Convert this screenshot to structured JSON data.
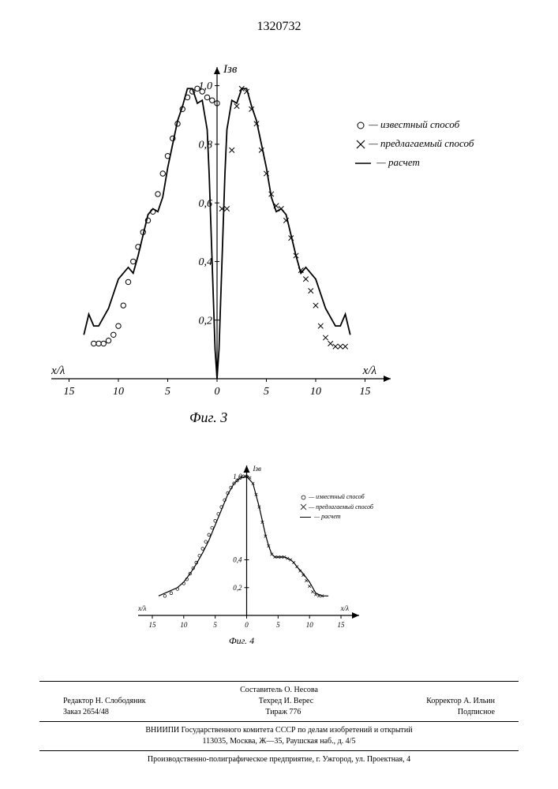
{
  "page_number": "1320732",
  "fig3": {
    "type": "line+scatter",
    "caption": "Фиг. 3",
    "y_label": "Iзв",
    "x_label_left": "x/λ",
    "x_label_right": "x/λ",
    "x_ticks_left": [
      "15",
      "10",
      "5",
      "0"
    ],
    "x_ticks_right": [
      "5",
      "10",
      "15"
    ],
    "y_ticks": [
      "0,2",
      "0,4",
      "0,6",
      "0,8",
      "1,0"
    ],
    "ylim": [
      0,
      1.05
    ],
    "xlim": [
      -16,
      16
    ],
    "line_color": "#000000",
    "line_width": 1.5,
    "marker_o_color": "#000000",
    "marker_x_color": "#000000",
    "background_color": "#ffffff",
    "calc_line": [
      [
        -13.5,
        0.15
      ],
      [
        -13,
        0.22
      ],
      [
        -12.5,
        0.18
      ],
      [
        -12,
        0.18
      ],
      [
        -11,
        0.24
      ],
      [
        -10,
        0.34
      ],
      [
        -9,
        0.38
      ],
      [
        -8.5,
        0.36
      ],
      [
        -8,
        0.42
      ],
      [
        -7,
        0.56
      ],
      [
        -6.5,
        0.58
      ],
      [
        -6,
        0.57
      ],
      [
        -5.5,
        0.62
      ],
      [
        -5,
        0.72
      ],
      [
        -4,
        0.88
      ],
      [
        -3.5,
        0.93
      ],
      [
        -3,
        0.99
      ],
      [
        -2.5,
        0.99
      ],
      [
        -2,
        0.94
      ],
      [
        -1.5,
        0.95
      ],
      [
        -1,
        0.85
      ],
      [
        -0.8,
        0.7
      ],
      [
        -0.5,
        0.4
      ],
      [
        -0.2,
        0.1
      ],
      [
        0,
        0.0
      ],
      [
        0.2,
        0.1
      ],
      [
        0.5,
        0.4
      ],
      [
        0.8,
        0.7
      ],
      [
        1,
        0.85
      ],
      [
        1.5,
        0.95
      ],
      [
        2,
        0.94
      ],
      [
        2.5,
        0.99
      ],
      [
        3,
        0.99
      ],
      [
        3.5,
        0.93
      ],
      [
        4,
        0.88
      ],
      [
        5,
        0.72
      ],
      [
        5.5,
        0.62
      ],
      [
        6,
        0.57
      ],
      [
        6.5,
        0.58
      ],
      [
        7,
        0.56
      ],
      [
        8,
        0.42
      ],
      [
        8.5,
        0.36
      ],
      [
        9,
        0.38
      ],
      [
        10,
        0.34
      ],
      [
        11,
        0.24
      ],
      [
        12,
        0.18
      ],
      [
        12.5,
        0.18
      ],
      [
        13,
        0.22
      ],
      [
        13.5,
        0.15
      ]
    ],
    "circles": [
      [
        -12.5,
        0.12
      ],
      [
        -12,
        0.12
      ],
      [
        -11.5,
        0.12
      ],
      [
        -11,
        0.13
      ],
      [
        -10.5,
        0.15
      ],
      [
        -10,
        0.18
      ],
      [
        -9.5,
        0.25
      ],
      [
        -9,
        0.33
      ],
      [
        -8.5,
        0.4
      ],
      [
        -8,
        0.45
      ],
      [
        -7.5,
        0.5
      ],
      [
        -7,
        0.54
      ],
      [
        -6.5,
        0.57
      ],
      [
        -6,
        0.63
      ],
      [
        -5.5,
        0.7
      ],
      [
        -5,
        0.76
      ],
      [
        -4.5,
        0.82
      ],
      [
        -4,
        0.87
      ],
      [
        -3.5,
        0.92
      ],
      [
        -3,
        0.96
      ],
      [
        -2.5,
        0.98
      ],
      [
        -2,
        0.99
      ],
      [
        -1.5,
        0.98
      ],
      [
        -1,
        0.96
      ],
      [
        -0.5,
        0.95
      ],
      [
        0,
        0.94
      ]
    ],
    "crosses": [
      [
        0.5,
        0.58
      ],
      [
        1,
        0.58
      ],
      [
        1.5,
        0.78
      ],
      [
        2,
        0.93
      ],
      [
        2.5,
        0.99
      ],
      [
        3,
        0.98
      ],
      [
        3.5,
        0.92
      ],
      [
        4,
        0.87
      ],
      [
        4.5,
        0.78
      ],
      [
        5,
        0.7
      ],
      [
        5.5,
        0.63
      ],
      [
        6,
        0.59
      ],
      [
        6.5,
        0.58
      ],
      [
        7,
        0.54
      ],
      [
        7.5,
        0.48
      ],
      [
        8,
        0.42
      ],
      [
        8.5,
        0.37
      ],
      [
        9,
        0.34
      ],
      [
        9.5,
        0.3
      ],
      [
        10,
        0.25
      ],
      [
        10.5,
        0.18
      ],
      [
        11,
        0.14
      ],
      [
        11.5,
        0.12
      ],
      [
        12,
        0.11
      ],
      [
        12.5,
        0.11
      ],
      [
        13,
        0.11
      ]
    ]
  },
  "fig4": {
    "type": "line+scatter",
    "caption": "Фиг. 4",
    "y_label": "Iзв",
    "x_label_left": "x/λ",
    "x_label_right": "x/λ",
    "x_ticks_left": [
      "15",
      "10",
      "5",
      "0"
    ],
    "x_ticks_right": [
      "5",
      "10",
      "15"
    ],
    "y_ticks": [
      "0,2",
      "0,4",
      "1,0"
    ],
    "ylim": [
      0,
      1.05
    ],
    "xlim": [
      -16,
      16
    ],
    "calc_line": [
      [
        -14,
        0.14
      ],
      [
        -13,
        0.16
      ],
      [
        -12,
        0.18
      ],
      [
        -11,
        0.2
      ],
      [
        -10,
        0.24
      ],
      [
        -9,
        0.3
      ],
      [
        -8,
        0.37
      ],
      [
        -7,
        0.45
      ],
      [
        -6,
        0.54
      ],
      [
        -5,
        0.65
      ],
      [
        -4,
        0.76
      ],
      [
        -3,
        0.87
      ],
      [
        -2,
        0.95
      ],
      [
        -1,
        0.99
      ],
      [
        0,
        1.0
      ],
      [
        1,
        0.95
      ],
      [
        2,
        0.78
      ],
      [
        3,
        0.58
      ],
      [
        3.5,
        0.5
      ],
      [
        4,
        0.44
      ],
      [
        4.5,
        0.42
      ],
      [
        5,
        0.42
      ],
      [
        5.5,
        0.42
      ],
      [
        6,
        0.42
      ],
      [
        6.5,
        0.41
      ],
      [
        7,
        0.4
      ],
      [
        7.5,
        0.38
      ],
      [
        8,
        0.35
      ],
      [
        9,
        0.3
      ],
      [
        10,
        0.24
      ],
      [
        10.5,
        0.2
      ],
      [
        11,
        0.16
      ],
      [
        12,
        0.14
      ],
      [
        13,
        0.14
      ]
    ],
    "circles": [
      [
        -13,
        0.14
      ],
      [
        -12,
        0.16
      ],
      [
        -11,
        0.19
      ],
      [
        -10,
        0.23
      ],
      [
        -9.5,
        0.26
      ],
      [
        -9,
        0.3
      ],
      [
        -8.5,
        0.34
      ],
      [
        -8,
        0.38
      ],
      [
        -7.5,
        0.43
      ],
      [
        -7,
        0.48
      ],
      [
        -6.5,
        0.53
      ],
      [
        -6,
        0.58
      ],
      [
        -5.5,
        0.63
      ],
      [
        -5,
        0.68
      ],
      [
        -4.5,
        0.73
      ],
      [
        -4,
        0.78
      ],
      [
        -3.5,
        0.83
      ],
      [
        -3,
        0.88
      ],
      [
        -2.5,
        0.92
      ],
      [
        -2,
        0.95
      ],
      [
        -1.5,
        0.97
      ],
      [
        -1,
        0.99
      ],
      [
        -0.5,
        1.0
      ],
      [
        0,
        1.0
      ]
    ],
    "crosses": [
      [
        0.5,
        0.99
      ],
      [
        1,
        0.95
      ],
      [
        1.5,
        0.87
      ],
      [
        2,
        0.78
      ],
      [
        2.5,
        0.67
      ],
      [
        3,
        0.57
      ],
      [
        3.5,
        0.5
      ],
      [
        4,
        0.44
      ],
      [
        4.5,
        0.42
      ],
      [
        5,
        0.42
      ],
      [
        5.5,
        0.42
      ],
      [
        6,
        0.42
      ],
      [
        6.5,
        0.41
      ],
      [
        7,
        0.4
      ],
      [
        7.5,
        0.38
      ],
      [
        8,
        0.35
      ],
      [
        8.5,
        0.32
      ],
      [
        9,
        0.29
      ],
      [
        9.5,
        0.25
      ],
      [
        10,
        0.21
      ],
      [
        10.5,
        0.17
      ],
      [
        11,
        0.15
      ],
      [
        11.5,
        0.14
      ],
      [
        12,
        0.14
      ]
    ]
  },
  "legend": {
    "circle_label": "— известный способ",
    "cross_label": "— предлагаемый способ",
    "line_label": "— расчет"
  },
  "legend_small": {
    "circle_label": "— известный способ",
    "cross_label": "— предлагаемый способ",
    "line_label": "— расчет"
  },
  "footer": {
    "compiler": "Составитель О. Несова",
    "editor": "Редактор Н. Слободяник",
    "techred": "Техред И. Верес",
    "corrector": "Корректор А. Ильин",
    "order": "Заказ 2654/48",
    "tirage": "Тираж 776",
    "subscription": "Подписное",
    "org1": "ВНИИПИ Государственного комитета СССР по делам изобретений и открытий",
    "org2": "113035, Москва, Ж—35, Раушская наб., д. 4/5",
    "org3": "Производственно-полиграфическое предприятие, г. Ужгород, ул. Проектная, 4"
  }
}
